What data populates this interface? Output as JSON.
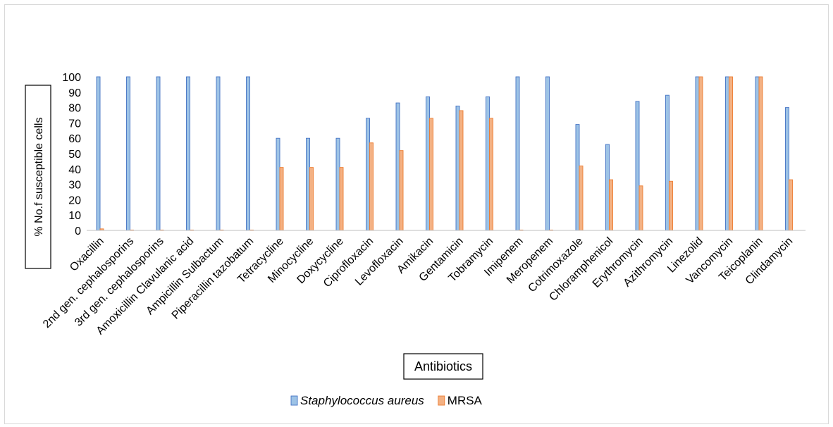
{
  "chart_data": {
    "type": "bar",
    "title": "",
    "xlabel": "Antibiotics",
    "ylabel": "% No.f susceptible cells",
    "ylim": [
      0,
      100
    ],
    "yticks": [
      0,
      10,
      20,
      30,
      40,
      50,
      60,
      70,
      80,
      90,
      100
    ],
    "grid": false,
    "legend_position": "bottom",
    "categories": [
      "Oxacillin",
      "2nd gen. cephalosporins",
      "3rd gen. cephalosporins",
      "Amoxicillin Clavulanic acid",
      "Ampicillin Sulbactum",
      "Piperacillin tazobatum",
      "Tetracycline",
      "Minocycline",
      "Doxycycline",
      "Ciprofloxacin",
      "Levofloxacin",
      "Amikacin",
      "Gentamicin",
      "Tobramycin",
      "Imipenem",
      "Meropenem",
      "Cotrimoxazole",
      "Chloramphenicol",
      "Erythromycin",
      "Azithromycin",
      "Linezolid",
      "Vancomycin",
      "Teicoplanin",
      "Clindamycin"
    ],
    "series": [
      {
        "name": "Staphylococcus aureus",
        "italic": true,
        "fill": "#9dc3e6",
        "stroke": "#4472c4",
        "values": [
          100,
          100,
          100,
          100,
          100,
          100,
          60,
          60,
          60,
          73,
          83,
          87,
          81,
          87,
          100,
          100,
          69,
          56,
          84,
          88,
          100,
          100,
          100,
          80
        ]
      },
      {
        "name": "MRSA",
        "italic": false,
        "fill": "#f4b183",
        "stroke": "#ed7d31",
        "values": [
          1,
          0,
          0,
          0,
          0,
          0,
          41,
          41,
          41,
          57,
          52,
          73,
          78,
          73,
          0,
          0,
          42,
          33,
          29,
          32,
          100,
          100,
          100,
          33
        ]
      }
    ]
  }
}
